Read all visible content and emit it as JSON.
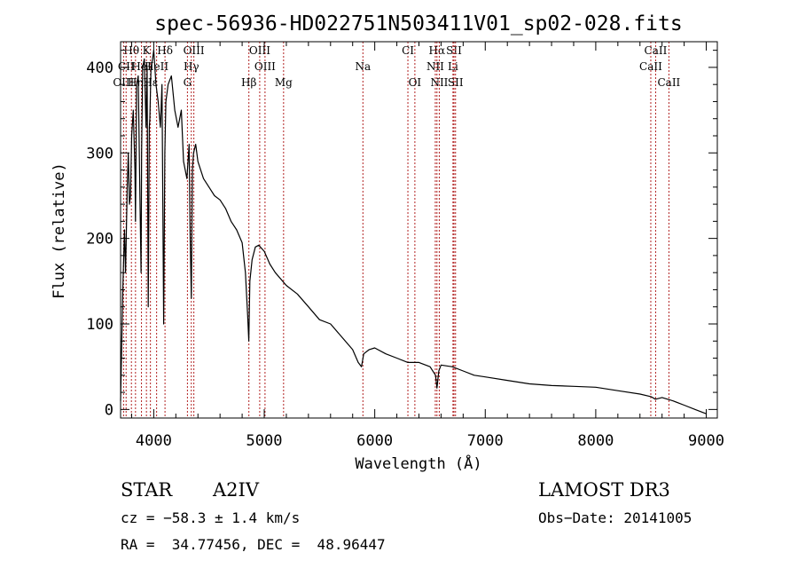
{
  "chart_data": {
    "type": "line",
    "title": "spec-56936-HD022751N503411V01_sp02-028.fits",
    "xlabel": "Wavelength (Å)",
    "ylabel": "Flux (relative)",
    "xlim": [
      3700,
      9100
    ],
    "ylim": [
      -10,
      430
    ],
    "x_ticks": [
      4000,
      5000,
      6000,
      7000,
      8000,
      9000
    ],
    "y_ticks": [
      0,
      100,
      200,
      300,
      400
    ],
    "grid": false,
    "series": [
      {
        "x": [
          3700,
          3720,
          3735,
          3745,
          3760,
          3770,
          3780,
          3790,
          3800,
          3815,
          3830,
          3835,
          3845,
          3860,
          3875,
          3885,
          3890,
          3900,
          3915,
          3930,
          3940,
          3950,
          3960,
          3965,
          3975,
          3990,
          4000,
          4020,
          4040,
          4060,
          4075,
          4090,
          4100,
          4110,
          4130,
          4160,
          4190,
          4220,
          4250,
          4270,
          4300,
          4320,
          4330,
          4340,
          4350,
          4360,
          4380,
          4400,
          4450,
          4500,
          4550,
          4600,
          4650,
          4700,
          4750,
          4800,
          4830,
          4850,
          4860,
          4870,
          4890,
          4920,
          4950,
          5000,
          5050,
          5100,
          5200,
          5300,
          5400,
          5500,
          5600,
          5700,
          5800,
          5850,
          5880,
          5900,
          5950,
          6000,
          6100,
          6200,
          6300,
          6400,
          6500,
          6550,
          6563,
          6580,
          6600,
          6700,
          6800,
          6900,
          7000,
          7200,
          7400,
          7600,
          7800,
          8000,
          8200,
          8400,
          8500,
          8540,
          8600,
          8700,
          8800,
          8900,
          9000
        ],
        "y": [
          10,
          140,
          210,
          160,
          260,
          300,
          240,
          250,
          320,
          350,
          280,
          220,
          380,
          390,
          250,
          160,
          300,
          400,
          410,
          330,
          400,
          120,
          330,
          340,
          400,
          410,
          420,
          380,
          360,
          330,
          380,
          100,
          300,
          360,
          380,
          390,
          350,
          330,
          350,
          290,
          270,
          310,
          200,
          130,
          280,
          300,
          310,
          290,
          270,
          260,
          250,
          245,
          235,
          220,
          210,
          195,
          160,
          110,
          80,
          150,
          175,
          190,
          192,
          185,
          170,
          160,
          145,
          135,
          120,
          105,
          100,
          85,
          70,
          55,
          50,
          65,
          70,
          72,
          65,
          60,
          55,
          55,
          50,
          40,
          25,
          45,
          52,
          50,
          45,
          40,
          38,
          34,
          30,
          28,
          27,
          26,
          22,
          18,
          15,
          12,
          14,
          10,
          5,
          0,
          -5
        ]
      }
    ],
    "spectral_lines": [
      {
        "label": "Hθ",
        "x": 3798,
        "row": 0
      },
      {
        "label": "K",
        "x": 3934,
        "row": 0
      },
      {
        "label": "Hδ",
        "x": 4102,
        "row": 0
      },
      {
        "label": "OIII",
        "x": 4363,
        "row": 0
      },
      {
        "label": "OIII",
        "x": 4959,
        "row": 0
      },
      {
        "label": "CI",
        "x": 6300,
        "row": 0
      },
      {
        "label": "Hα",
        "x": 6563,
        "row": 0
      },
      {
        "label": "SII",
        "x": 6717,
        "row": 0
      },
      {
        "label": "CaII",
        "x": 8542,
        "row": 0
      },
      {
        "label": "CII",
        "x": 3750,
        "row": 1
      },
      {
        "label": "HeI",
        "x": 3889,
        "row": 1
      },
      {
        "label": "HeII",
        "x": 4026,
        "row": 1
      },
      {
        "label": "Hγ",
        "x": 4340,
        "row": 1
      },
      {
        "label": "OIII",
        "x": 5007,
        "row": 1
      },
      {
        "label": "Na",
        "x": 5893,
        "row": 1
      },
      {
        "label": "NII",
        "x": 6548,
        "row": 1
      },
      {
        "label": "Li",
        "x": 6708,
        "row": 1
      },
      {
        "label": "CaII",
        "x": 8498,
        "row": 1
      },
      {
        "label": "OIII",
        "x": 3727,
        "row": 2
      },
      {
        "label": "Hη",
        "x": 3835,
        "row": 2
      },
      {
        "label": "Hε",
        "x": 3970,
        "row": 2
      },
      {
        "label": "G",
        "x": 4305,
        "row": 2
      },
      {
        "label": "Hβ",
        "x": 4861,
        "row": 2
      },
      {
        "label": "Mg",
        "x": 5175,
        "row": 2
      },
      {
        "label": "OI",
        "x": 6363,
        "row": 2
      },
      {
        "label": "NII",
        "x": 6584,
        "row": 2
      },
      {
        "label": "SII",
        "x": 6731,
        "row": 2
      },
      {
        "label": "CaII",
        "x": 8662,
        "row": 2
      }
    ]
  },
  "info": {
    "object_type": "STAR",
    "spectral_class": "A2IV",
    "survey": "LAMOST DR3",
    "cz": "cz = −58.3 ± 1.4 km/s",
    "obs_date": "Obs−Date: 20141005",
    "coords": "RA =  34.77456, DEC =  48.96447"
  }
}
